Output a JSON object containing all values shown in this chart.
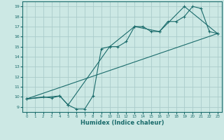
{
  "title": "",
  "xlabel": "Humidex (Indice chaleur)",
  "background_color": "#cce8e4",
  "grid_color": "#aaccca",
  "line_color": "#1a6b6b",
  "xlim": [
    -0.5,
    23.5
  ],
  "ylim": [
    8.5,
    19.5
  ],
  "xticks": [
    0,
    1,
    2,
    3,
    4,
    5,
    6,
    7,
    8,
    9,
    10,
    11,
    12,
    13,
    14,
    15,
    16,
    17,
    18,
    19,
    20,
    21,
    22,
    23
  ],
  "yticks": [
    9,
    10,
    11,
    12,
    13,
    14,
    15,
    16,
    17,
    18,
    19
  ],
  "series1_x": [
    0,
    2,
    3,
    4,
    5,
    6,
    7,
    8,
    9,
    10,
    11,
    12,
    13,
    14,
    15,
    16,
    17,
    18,
    19,
    20,
    21,
    22,
    23
  ],
  "series1_y": [
    9.8,
    10.0,
    9.9,
    10.1,
    9.2,
    8.8,
    8.8,
    10.1,
    14.8,
    15.0,
    15.0,
    15.5,
    17.0,
    17.0,
    16.5,
    16.5,
    17.5,
    17.5,
    18.0,
    19.0,
    18.8,
    16.5,
    16.3
  ],
  "series2_x": [
    0,
    23
  ],
  "series2_y": [
    9.8,
    16.3
  ],
  "series3_x": [
    0,
    4,
    5,
    10,
    13,
    16,
    19,
    23
  ],
  "series3_y": [
    9.8,
    10.1,
    9.2,
    15.0,
    17.0,
    16.5,
    19.0,
    16.3
  ]
}
